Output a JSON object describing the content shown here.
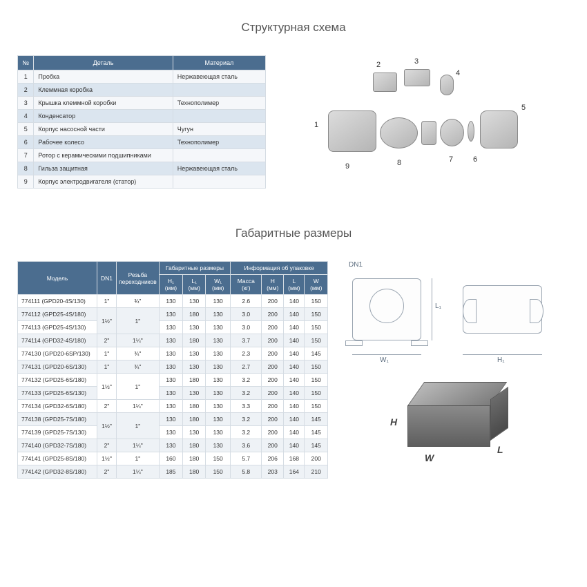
{
  "titles": {
    "structure": "Структурная схема",
    "dimensions": "Габаритные размеры"
  },
  "parts_table": {
    "headers": {
      "num": "№",
      "detail": "Деталь",
      "material": "Материал"
    },
    "rows": [
      {
        "n": "1",
        "d": "Пробка",
        "m": "Нержавеющая сталь"
      },
      {
        "n": "2",
        "d": "Клеммная коробка",
        "m": ""
      },
      {
        "n": "3",
        "d": "Крышка клеммной коробки",
        "m": "Технополимер"
      },
      {
        "n": "4",
        "d": "Конденсатор",
        "m": ""
      },
      {
        "n": "5",
        "d": "Корпус насосной части",
        "m": "Чугун"
      },
      {
        "n": "6",
        "d": "Рабочее колесо",
        "m": "Технополимер"
      },
      {
        "n": "7",
        "d": "Ротор с керамическими подшипниками",
        "m": ""
      },
      {
        "n": "8",
        "d": "Гильза защитная",
        "m": "Нержавеющая сталь"
      },
      {
        "n": "9",
        "d": "Корпус электродвигателя (статор)",
        "m": ""
      }
    ]
  },
  "exploded_labels": [
    "1",
    "2",
    "3",
    "4",
    "5",
    "6",
    "7",
    "8",
    "9"
  ],
  "dim_table": {
    "head_groups": {
      "model": "Модель",
      "dn1": "DN1",
      "thread": "Резьба переходников",
      "gabarit": "Габаритные размеры",
      "pack": "Информация об упаковке"
    },
    "sub": {
      "h1": "H₁ (мм)",
      "l1": "L₁ (мм)",
      "w1": "W₁ (мм)",
      "mass": "Масса (кг)",
      "H": "H (мм)",
      "L": "L (мм)",
      "W": "W (мм)"
    },
    "rows": [
      {
        "model": "774111 (GPD20-4S/130)",
        "dn": "1\"",
        "th": "¾\"",
        "h1": "130",
        "l1": "130",
        "w1": "130",
        "m": "2.6",
        "H": "200",
        "L": "140",
        "W": "150",
        "rowspan": null
      },
      {
        "model": "774112 (GPD25-4S/180)",
        "dn": "1½\"",
        "th": "1\"",
        "h1": "130",
        "l1": "180",
        "w1": "130",
        "m": "3.0",
        "H": "200",
        "L": "140",
        "W": "150",
        "rowspan": 2
      },
      {
        "model": "774113 (GPD25-4S/130)",
        "dn": null,
        "th": null,
        "h1": "130",
        "l1": "130",
        "w1": "130",
        "m": "3.0",
        "H": "200",
        "L": "140",
        "W": "150"
      },
      {
        "model": "774114 (GPD32-4S/180)",
        "dn": "2\"",
        "th": "1¼\"",
        "h1": "130",
        "l1": "180",
        "w1": "130",
        "m": "3.7",
        "H": "200",
        "L": "140",
        "W": "150"
      },
      {
        "model": "774130 (GPD20-6SP/130)",
        "dn": "1\"",
        "th": "¾\"",
        "h1": "130",
        "l1": "130",
        "w1": "130",
        "m": "2.3",
        "H": "200",
        "L": "140",
        "W": "145"
      },
      {
        "model": "774131 (GPD20-6S/130)",
        "dn": "1\"",
        "th": "¾\"",
        "h1": "130",
        "l1": "130",
        "w1": "130",
        "m": "2.7",
        "H": "200",
        "L": "140",
        "W": "150"
      },
      {
        "model": "774132 (GPD25-6S/180)",
        "dn": "1½\"",
        "th": "1\"",
        "h1": "130",
        "l1": "180",
        "w1": "130",
        "m": "3.2",
        "H": "200",
        "L": "140",
        "W": "150",
        "rowspan": 2
      },
      {
        "model": "774133 (GPD25-6S/130)",
        "dn": null,
        "th": null,
        "h1": "130",
        "l1": "130",
        "w1": "130",
        "m": "3.2",
        "H": "200",
        "L": "140",
        "W": "150"
      },
      {
        "model": "774134 (GPD32-6S/180)",
        "dn": "2\"",
        "th": "1¼\"",
        "h1": "130",
        "l1": "180",
        "w1": "130",
        "m": "3.3",
        "H": "200",
        "L": "140",
        "W": "150"
      },
      {
        "model": "774138 (GPD25-7S/180)",
        "dn": "1½\"",
        "th": "1\"",
        "h1": "130",
        "l1": "180",
        "w1": "130",
        "m": "3.2",
        "H": "200",
        "L": "140",
        "W": "145",
        "rowspan": 2
      },
      {
        "model": "774139 (GPD25-7S/130)",
        "dn": null,
        "th": null,
        "h1": "130",
        "l1": "130",
        "w1": "130",
        "m": "3.2",
        "H": "200",
        "L": "140",
        "W": "145"
      },
      {
        "model": "774140 (GPD32-7S/180)",
        "dn": "2\"",
        "th": "1¼\"",
        "h1": "130",
        "l1": "180",
        "w1": "130",
        "m": "3.6",
        "H": "200",
        "L": "140",
        "W": "145"
      },
      {
        "model": "774141 (GPD25-8S/180)",
        "dn": "1½\"",
        "th": "1\"",
        "h1": "160",
        "l1": "180",
        "w1": "150",
        "m": "5.7",
        "H": "206",
        "L": "168",
        "W": "200"
      },
      {
        "model": "774142 (GPD32-8S/180)",
        "dn": "2\"",
        "th": "1¼\"",
        "h1": "185",
        "l1": "180",
        "w1": "150",
        "m": "5.8",
        "H": "203",
        "L": "164",
        "W": "210"
      }
    ]
  },
  "pump_labels": {
    "dn1": "DN1",
    "l1": "L₁",
    "w1": "W₁",
    "h1": "H₁"
  },
  "box_labels": {
    "h": "H",
    "w": "W",
    "l": "L"
  }
}
